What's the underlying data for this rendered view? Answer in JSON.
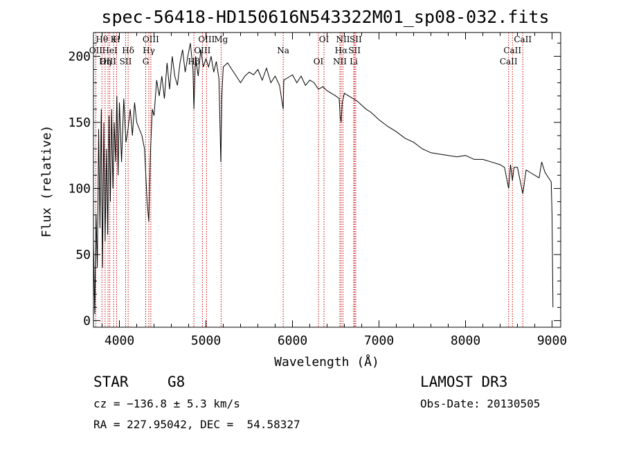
{
  "chart_data": {
    "type": "line",
    "title": "spec-56418-HD150616N543322M01_sp08-032.fits",
    "xlabel": "Wavelength (Å)",
    "ylabel": "Flux (relative)",
    "xlim": [
      3700,
      9100
    ],
    "ylim": [
      -5,
      218
    ],
    "x_ticks": [
      4000,
      5000,
      6000,
      7000,
      8000,
      9000
    ],
    "y_ticks": [
      0,
      50,
      100,
      150,
      200
    ],
    "grid": false,
    "series": [
      {
        "name": "spectrum",
        "x": [
          3700,
          3715,
          3730,
          3745,
          3760,
          3775,
          3790,
          3805,
          3820,
          3835,
          3850,
          3865,
          3880,
          3895,
          3910,
          3925,
          3940,
          3955,
          3970,
          3985,
          4000,
          4025,
          4050,
          4075,
          4100,
          4125,
          4150,
          4175,
          4200,
          4230,
          4260,
          4290,
          4320,
          4340,
          4360,
          4380,
          4400,
          4430,
          4460,
          4490,
          4520,
          4550,
          4580,
          4610,
          4640,
          4670,
          4700,
          4730,
          4760,
          4790,
          4820,
          4850,
          4861,
          4880,
          4910,
          4940,
          4970,
          5000,
          5030,
          5060,
          5090,
          5120,
          5150,
          5172,
          5184,
          5200,
          5250,
          5300,
          5350,
          5400,
          5450,
          5500,
          5550,
          5600,
          5650,
          5700,
          5750,
          5800,
          5850,
          5893,
          5900,
          5950,
          6000,
          6050,
          6100,
          6150,
          6200,
          6250,
          6300,
          6350,
          6400,
          6450,
          6500,
          6540,
          6550,
          6563,
          6575,
          6600,
          6650,
          6700,
          6750,
          6800,
          6850,
          6900,
          6950,
          7000,
          7100,
          7200,
          7300,
          7400,
          7500,
          7600,
          7700,
          7800,
          7900,
          8000,
          8100,
          8200,
          8300,
          8400,
          8450,
          8498,
          8520,
          8542,
          8560,
          8600,
          8662,
          8700,
          8750,
          8800,
          8850,
          8880,
          8920,
          8960,
          8990,
          9000,
          9010
        ],
        "y": [
          60,
          5,
          80,
          40,
          145,
          70,
          160,
          40,
          150,
          60,
          130,
          65,
          155,
          90,
          160,
          100,
          150,
          120,
          170,
          110,
          165,
          120,
          168,
          135,
          145,
          160,
          140,
          165,
          150,
          145,
          140,
          130,
          90,
          75,
          130,
          160,
          155,
          182,
          170,
          185,
          168,
          195,
          175,
          200,
          185,
          178,
          195,
          205,
          188,
          200,
          210,
          190,
          160,
          200,
          185,
          205,
          192,
          198,
          192,
          200,
          188,
          196,
          183,
          120,
          170,
          192,
          195,
          190,
          185,
          180,
          185,
          188,
          186,
          190,
          182,
          191,
          180,
          185,
          178,
          160,
          182,
          184,
          186,
          180,
          185,
          178,
          182,
          180,
          175,
          177,
          174,
          172,
          170,
          168,
          155,
          150,
          165,
          172,
          170,
          168,
          166,
          163,
          160,
          158,
          155,
          152,
          147,
          143,
          138,
          135,
          130,
          127,
          126,
          125,
          124,
          125,
          122,
          122,
          120,
          118,
          116,
          100,
          118,
          106,
          116,
          116,
          96,
          114,
          112,
          110,
          108,
          120,
          112,
          108,
          105,
          80,
          10
        ]
      }
    ],
    "spectral_lines": [
      {
        "label": "Hθ",
        "wavelength": 3798
      },
      {
        "label": "OII",
        "wavelength": 3727
      },
      {
        "label": "OIII",
        "wavelength": 3869
      },
      {
        "label": "K",
        "wavelength": 3933
      },
      {
        "label": "HeI",
        "wavelength": 3889
      },
      {
        "label": "Hη",
        "wavelength": 3835
      },
      {
        "label": "H",
        "wavelength": 3968
      },
      {
        "label": "Hδ",
        "wavelength": 4101
      },
      {
        "label": "SII",
        "wavelength": 4072
      },
      {
        "label": "OIII",
        "wavelength": 4363
      },
      {
        "label": "Hγ",
        "wavelength": 4340
      },
      {
        "label": "G",
        "wavelength": 4304
      },
      {
        "label": "OIII",
        "wavelength": 5007
      },
      {
        "label": "OIII",
        "wavelength": 4959
      },
      {
        "label": "Hβ",
        "wavelength": 4861
      },
      {
        "label": "Mg",
        "wavelength": 5175
      },
      {
        "label": "Na",
        "wavelength": 5893
      },
      {
        "label": "OI",
        "wavelength": 6300
      },
      {
        "label": "OI",
        "wavelength": 6364
      },
      {
        "label": "Hα",
        "wavelength": 6563
      },
      {
        "label": "NII",
        "wavelength": 6548
      },
      {
        "label": "NII",
        "wavelength": 6584
      },
      {
        "label": "SII",
        "wavelength": 6717
      },
      {
        "label": "Li",
        "wavelength": 6708
      },
      {
        "label": "SII",
        "wavelength": 6731
      },
      {
        "label": "CaII",
        "wavelength": 8542
      },
      {
        "label": "CaII",
        "wavelength": 8498
      },
      {
        "label": "CaII",
        "wavelength": 8662
      }
    ]
  },
  "info": {
    "class_label": "STAR",
    "subclass": "G8",
    "survey": "LAMOST DR3",
    "redshift_line": "cz = −136.8 ± 5.3 km/s",
    "obs_date_line": "Obs-Date: 20130505",
    "coords_line": "RA = 227.95042, DEC =  54.58327"
  }
}
